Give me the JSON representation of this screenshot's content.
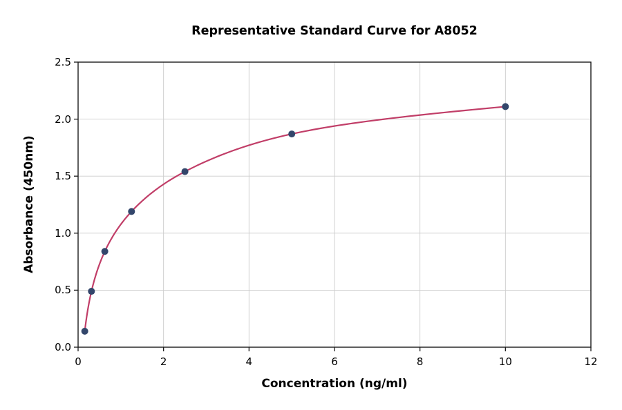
{
  "chart_data": {
    "type": "scatter",
    "title": "Representative Standard Curve for A8052",
    "xlabel": "Concentration (ng/ml)",
    "ylabel": "Absorbance (450nm)",
    "x": [
      0.156,
      0.3125,
      0.625,
      1.25,
      2.5,
      5,
      10
    ],
    "y": [
      0.14,
      0.49,
      0.84,
      1.19,
      1.54,
      1.87,
      2.11
    ],
    "series": [
      {
        "name": "standard-curve",
        "style": "smooth-line-with-markers",
        "points": [
          {
            "x": 0.156,
            "y": 0.14
          },
          {
            "x": 0.3125,
            "y": 0.49
          },
          {
            "x": 0.625,
            "y": 0.84
          },
          {
            "x": 1.25,
            "y": 1.19
          },
          {
            "x": 2.5,
            "y": 1.54
          },
          {
            "x": 5,
            "y": 1.87
          },
          {
            "x": 10,
            "y": 2.11
          }
        ]
      }
    ],
    "xlim": [
      0,
      12
    ],
    "ylim": [
      0,
      2.5
    ],
    "xticks": [
      0,
      2,
      4,
      6,
      8,
      10,
      12
    ],
    "xtick_labels": [
      "0",
      "2",
      "4",
      "6",
      "8",
      "10",
      "12"
    ],
    "yticks": [
      0,
      0.5,
      1,
      1.5,
      2,
      2.5
    ],
    "ytick_labels": [
      "0.0",
      "0.5",
      "1.0",
      "1.5",
      "2.0",
      "2.5"
    ],
    "grid": true,
    "legend": "none"
  },
  "colors": {
    "curve_line": "#c13e68",
    "marker_fill": "#33466b",
    "grid_line": "#cccccc",
    "spine": "#1a1a1a",
    "background": "#ffffff",
    "text": "#000000"
  }
}
